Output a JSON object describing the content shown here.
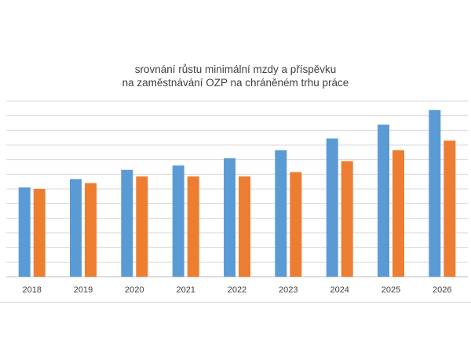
{
  "chart_data": {
    "type": "bar",
    "title_lines": [
      "srovnání růstu minimální mzdy a příspěvku",
      "na zaměstnávání OZP na chráněném trhu práce"
    ],
    "xlabel": "",
    "ylabel": "",
    "categories": [
      "2018",
      "2019",
      "2020",
      "2021",
      "2022",
      "2023",
      "2024",
      "2025",
      "2026"
    ],
    "series": [
      {
        "color": "#5b9bd5",
        "values": [
          12200,
          13350,
          14600,
          15200,
          16200,
          17300,
          18900,
          20800,
          22800
        ]
      },
      {
        "color": "#ed7d31",
        "values": [
          12000,
          12800,
          13700,
          13700,
          13700,
          14300,
          15800,
          17300,
          18600
        ]
      }
    ],
    "ylim": [
      0,
      24000
    ],
    "grid": true,
    "legend": "none"
  }
}
